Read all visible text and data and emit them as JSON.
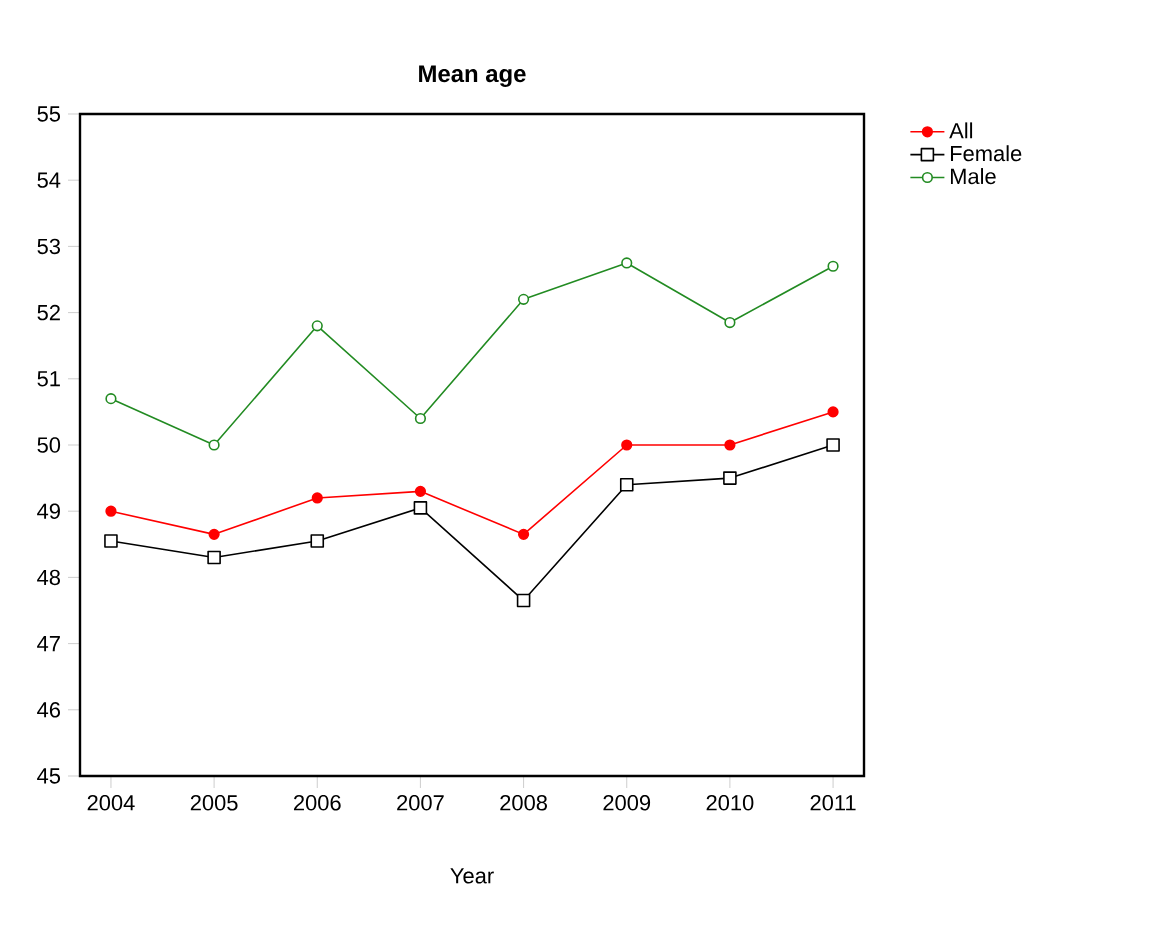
{
  "chart_data": {
    "type": "line",
    "title": "Mean age",
    "xlabel": "Year",
    "x": [
      2004,
      2005,
      2006,
      2007,
      2008,
      2009,
      2010,
      2011
    ],
    "series": [
      {
        "name": "All",
        "color": "#ff0000",
        "marker": "circle",
        "values": [
          49.0,
          48.65,
          49.2,
          49.3,
          48.65,
          50.0,
          50.0,
          50.5
        ]
      },
      {
        "name": "Female",
        "color": "#000000",
        "marker": "square",
        "values": [
          48.55,
          48.3,
          48.55,
          49.05,
          47.65,
          49.4,
          49.5,
          50.0
        ]
      },
      {
        "name": "Male",
        "color": "#228b22",
        "marker": "circle",
        "values": [
          50.7,
          50.0,
          51.8,
          50.4,
          52.2,
          52.75,
          51.85,
          52.7
        ]
      }
    ],
    "xlim": [
      2003.7,
      2011.3
    ],
    "xticks": [
      2004,
      2005,
      2006,
      2007,
      2008,
      2009,
      2010,
      2011
    ],
    "ylim": [
      45,
      55
    ],
    "yticks": [
      45,
      46,
      47,
      48,
      49,
      50,
      51,
      52,
      53,
      54,
      55
    ],
    "grid": false,
    "legend": "right",
    "line_style": "solid"
  }
}
